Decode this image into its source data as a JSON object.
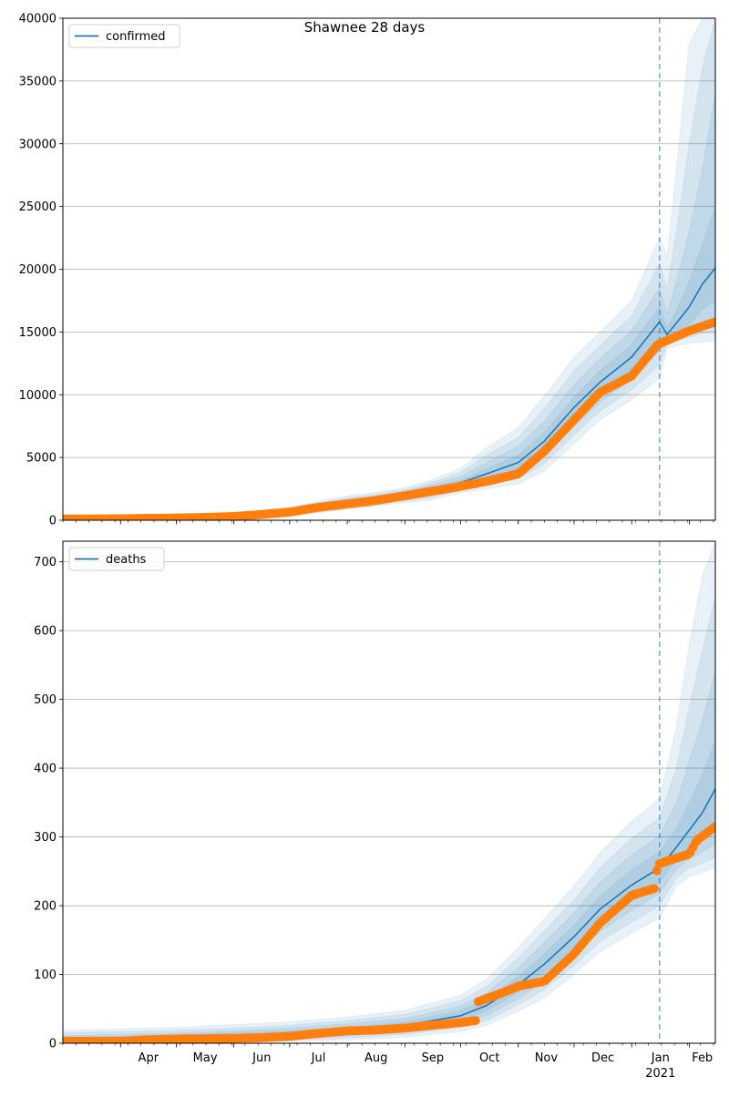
{
  "figure": {
    "title": "Shawnee 28 days"
  },
  "chart_data": [
    {
      "type": "line",
      "legend": [
        "confirmed"
      ],
      "legend_position": "top-left",
      "grid": "y",
      "xlim": [
        "2020-03-01",
        "2021-02-15"
      ],
      "ylim": [
        0,
        40000
      ],
      "yticks": [
        0,
        5000,
        10000,
        15000,
        20000,
        25000,
        30000,
        35000,
        40000
      ],
      "forecast_start": "2021-01-16",
      "model_median": {
        "x": [
          "2020-03-01",
          "2020-04-01",
          "2020-05-01",
          "2020-06-01",
          "2020-07-01",
          "2020-07-15",
          "2020-08-01",
          "2020-08-15",
          "2020-09-01",
          "2020-09-15",
          "2020-10-01",
          "2020-10-15",
          "2020-11-01",
          "2020-11-15",
          "2020-12-01",
          "2020-12-15",
          "2021-01-01",
          "2021-01-16",
          "2021-01-20",
          "2021-01-25",
          "2021-02-01",
          "2021-02-08",
          "2021-02-15"
        ],
        "y": [
          100,
          120,
          200,
          350,
          700,
          1000,
          1350,
          1600,
          2000,
          2400,
          3000,
          3700,
          4600,
          6300,
          9000,
          11000,
          13000,
          15800,
          14800,
          15700,
          17000,
          18800,
          20100
        ]
      },
      "band_50": {
        "lower": [
          80,
          100,
          170,
          300,
          620,
          880,
          1200,
          1450,
          1850,
          2200,
          2800,
          3400,
          4100,
          5700,
          8200,
          10100,
          12000,
          14600,
          14500,
          15000,
          15600,
          16800,
          17500
        ],
        "upper": [
          120,
          140,
          230,
          400,
          780,
          1120,
          1500,
          1750,
          2150,
          2600,
          3200,
          4100,
          5200,
          7000,
          9800,
          11900,
          14000,
          17000,
          15300,
          16700,
          19000,
          22000,
          25000
        ]
      },
      "band_80": {
        "lower": [
          60,
          80,
          140,
          250,
          540,
          780,
          1080,
          1320,
          1700,
          2000,
          2600,
          3100,
          3700,
          5100,
          7500,
          9400,
          11200,
          13500,
          14300,
          14700,
          15100,
          15600,
          16000
        ],
        "upper": [
          140,
          160,
          260,
          450,
          860,
          1240,
          1650,
          1900,
          2300,
          2800,
          3500,
          4600,
          5900,
          7900,
          10800,
          12900,
          15100,
          18500,
          16500,
          19000,
          23000,
          28000,
          34000
        ]
      },
      "band_95": {
        "lower": [
          40,
          60,
          110,
          200,
          460,
          680,
          960,
          1200,
          1550,
          1800,
          2400,
          2800,
          3300,
          4500,
          6800,
          8700,
          10400,
          12400,
          14000,
          14300,
          14600,
          14900,
          15000
        ],
        "upper": [
          160,
          180,
          290,
          500,
          940,
          1360,
          1800,
          2050,
          2450,
          3000,
          3800,
          5200,
          6600,
          8900,
          11900,
          13900,
          16300,
          20500,
          18500,
          23000,
          30000,
          36000,
          40000
        ]
      },
      "band_99": {
        "lower": [
          20,
          40,
          80,
          150,
          380,
          580,
          840,
          1080,
          1400,
          1600,
          2200,
          2500,
          2900,
          3900,
          6100,
          8000,
          9600,
          11300,
          13700,
          13900,
          14100,
          14200,
          14300
        ],
        "upper": [
          180,
          200,
          320,
          550,
          1020,
          1480,
          1950,
          2200,
          2600,
          3200,
          4100,
          5800,
          7400,
          9900,
          13000,
          15000,
          17500,
          22500,
          21000,
          28000,
          38000,
          40000,
          40000
        ]
      },
      "observed": {
        "x": [
          "2020-03-01",
          "2020-03-15",
          "2020-04-01",
          "2020-04-15",
          "2020-05-01",
          "2020-05-15",
          "2020-06-01",
          "2020-06-15",
          "2020-07-01",
          "2020-07-15",
          "2020-08-01",
          "2020-08-15",
          "2020-09-01",
          "2020-09-15",
          "2020-10-01",
          "2020-10-15",
          "2020-11-01",
          "2020-11-15",
          "2020-12-01",
          "2020-12-15",
          "2021-01-01",
          "2021-01-15",
          "2021-02-01",
          "2021-02-15"
        ],
        "y": [
          100,
          100,
          120,
          150,
          180,
          220,
          300,
          450,
          650,
          1000,
          1300,
          1550,
          1950,
          2300,
          2700,
          3100,
          3700,
          5500,
          8000,
          10200,
          11500,
          14000,
          15100,
          15800
        ]
      }
    },
    {
      "type": "line",
      "legend": [
        "deaths"
      ],
      "legend_position": "top-left",
      "grid": "y",
      "xlim": [
        "2020-03-01",
        "2021-02-15"
      ],
      "ylim": [
        0,
        730
      ],
      "yticks": [
        0,
        100,
        200,
        300,
        400,
        500,
        600,
        700
      ],
      "xtick_labels": [
        "Apr",
        "May",
        "Jun",
        "Jul",
        "Aug",
        "Sep",
        "Oct",
        "Nov",
        "Dec",
        "Jan",
        "Feb"
      ],
      "xtick_positions": [
        "2020-04-01",
        "2020-05-01",
        "2020-06-01",
        "2020-07-01",
        "2020-08-01",
        "2020-09-01",
        "2020-10-01",
        "2020-11-01",
        "2020-12-01",
        "2021-01-01",
        "2021-02-01"
      ],
      "year_label": "2021",
      "forecast_start": "2021-01-16",
      "model_median": {
        "x": [
          "2020-03-01",
          "2020-04-01",
          "2020-05-01",
          "2020-06-01",
          "2020-07-01",
          "2020-08-01",
          "2020-09-01",
          "2020-10-01",
          "2020-10-15",
          "2020-11-01",
          "2020-11-15",
          "2020-12-01",
          "2020-12-15",
          "2021-01-01",
          "2021-01-16",
          "2021-01-25",
          "2021-02-01",
          "2021-02-08",
          "2021-02-15"
        ],
        "y": [
          5,
          7,
          9,
          11,
          14,
          18,
          26,
          40,
          55,
          85,
          115,
          155,
          195,
          230,
          255,
          285,
          310,
          335,
          370
        ]
      },
      "band_50": {
        "lower": [
          3,
          4,
          6,
          8,
          10,
          14,
          21,
          34,
          47,
          74,
          102,
          140,
          178,
          210,
          235,
          265,
          285,
          300,
          320
        ],
        "upper": [
          8,
          10,
          12,
          15,
          18,
          23,
          31,
          47,
          64,
          97,
          130,
          172,
          214,
          252,
          278,
          312,
          350,
          390,
          440
        ]
      },
      "band_80": {
        "lower": [
          1,
          2,
          4,
          6,
          8,
          11,
          17,
          29,
          40,
          65,
          90,
          127,
          163,
          193,
          218,
          252,
          268,
          278,
          290
        ],
        "upper": [
          11,
          13,
          15,
          18,
          22,
          28,
          36,
          54,
          73,
          110,
          146,
          190,
          234,
          274,
          302,
          350,
          410,
          470,
          540
        ]
      },
      "band_95": {
        "lower": [
          0,
          1,
          2,
          4,
          5,
          8,
          13,
          23,
          33,
          56,
          78,
          113,
          148,
          176,
          200,
          240,
          255,
          262,
          270
        ],
        "upper": [
          15,
          17,
          19,
          22,
          26,
          33,
          42,
          62,
          83,
          124,
          163,
          209,
          255,
          298,
          328,
          400,
          490,
          570,
          650
        ]
      },
      "band_99": {
        "lower": [
          0,
          0,
          1,
          2,
          3,
          5,
          9,
          17,
          26,
          47,
          66,
          100,
          133,
          160,
          182,
          228,
          242,
          248,
          255
        ],
        "upper": [
          19,
          21,
          23,
          27,
          31,
          38,
          48,
          70,
          94,
          139,
          181,
          229,
          277,
          323,
          356,
          460,
          580,
          680,
          730
        ]
      },
      "observed": {
        "x": [
          "2020-03-01",
          "2020-04-01",
          "2020-04-15",
          "2020-05-01",
          "2020-06-01",
          "2020-06-15",
          "2020-07-01",
          "2020-07-15",
          "2020-08-01",
          "2020-08-15",
          "2020-09-01",
          "2020-09-15",
          "2020-10-01",
          "2020-10-09",
          "2020-10-10",
          "2020-10-25",
          "2020-11-01",
          "2020-11-15",
          "2020-12-01",
          "2020-12-15",
          "2021-01-01",
          "2021-01-13",
          "2021-01-15",
          "2021-01-20",
          "2021-02-01",
          "2021-02-05",
          "2021-02-15"
        ],
        "y": [
          3,
          3,
          5,
          6,
          7,
          8,
          10,
          14,
          18,
          19,
          22,
          26,
          30,
          33,
          60,
          75,
          83,
          90,
          130,
          175,
          215,
          225,
          260,
          265,
          275,
          295,
          315
        ]
      }
    }
  ]
}
